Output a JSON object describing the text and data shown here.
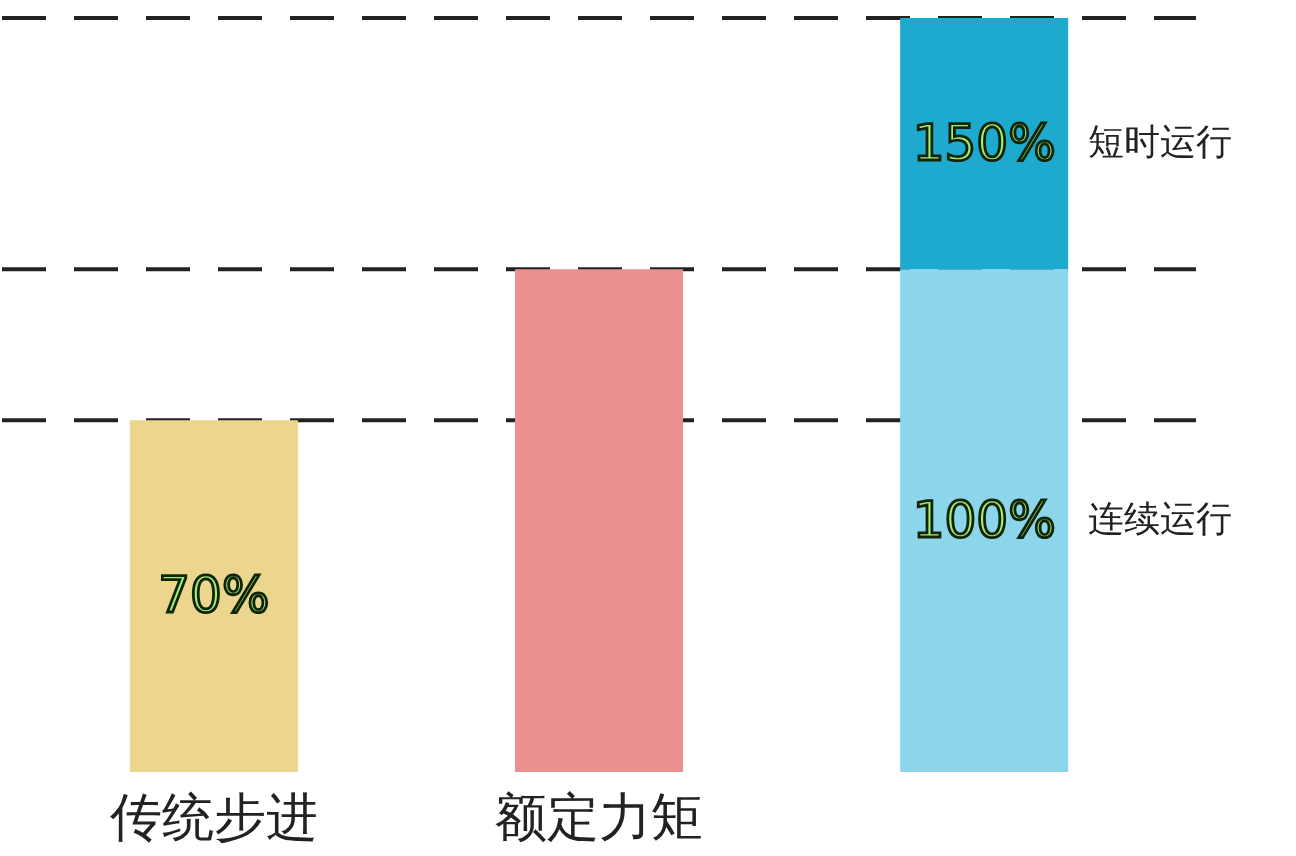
{
  "chart_data": {
    "type": "bar",
    "stacked": true,
    "categories": [
      "传统步进",
      "额定力矩",
      null
    ],
    "series": [
      {
        "name": "连续运行",
        "colors": [
          "#ecd58c",
          "#ec8f8f",
          "#8dd5ea"
        ],
        "values": [
          70,
          100,
          100
        ],
        "value_labels": [
          "70%",
          null,
          "100%"
        ]
      },
      {
        "name": "短时运行",
        "color": "#1ea9cf",
        "values": [
          null,
          null,
          50
        ]
      }
    ],
    "totals": [
      null,
      null,
      "150%"
    ],
    "ylim": [
      0,
      150
    ],
    "tick_labels": "x",
    "grid": false,
    "ref_lines": [
      {
        "axis": "y",
        "value": 70,
        "color": "#222222",
        "line_style": "dashed"
      },
      {
        "axis": "y",
        "value": 100,
        "color": "#222222",
        "line_style": "dashed"
      },
      {
        "axis": "y",
        "value": 150,
        "color": "#222222",
        "line_style": "dashed"
      }
    ]
  }
}
